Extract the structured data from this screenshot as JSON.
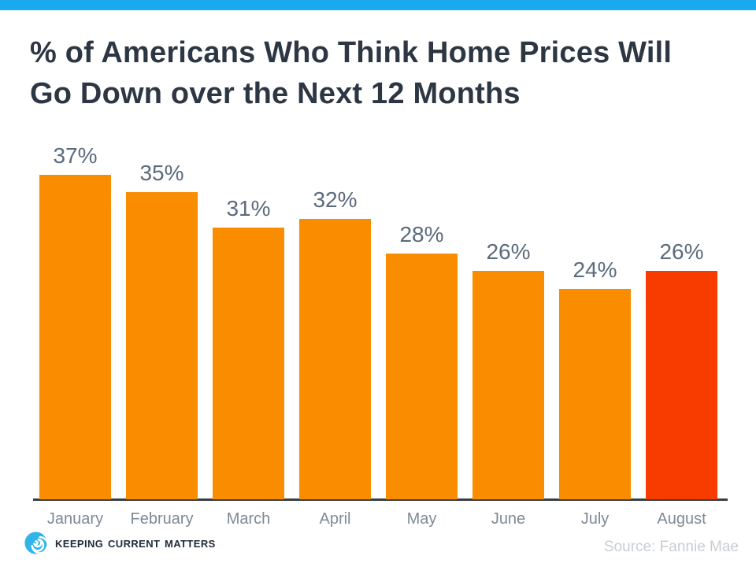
{
  "page": {
    "title": "% of Americans Who Think Home Prices Will Go Down over the Next 12 Months"
  },
  "chart_data": {
    "type": "bar",
    "title": "% of Americans Who Think Home Prices Will Go Down over the Next 12 Months",
    "categories": [
      "January",
      "February",
      "March",
      "April",
      "May",
      "June",
      "July",
      "August"
    ],
    "values": [
      37,
      35,
      31,
      32,
      28,
      26,
      24,
      26
    ],
    "value_labels": [
      "37%",
      "35%",
      "31%",
      "32%",
      "28%",
      "26%",
      "24%",
      "26%"
    ],
    "xlabel": "",
    "ylabel": "",
    "ylim": [
      0,
      40
    ],
    "grid": false,
    "legend": false,
    "bar_color": "#FA8C00",
    "highlight_index": 7,
    "highlight_color": "#F83C00",
    "annotation": "Final month (August) highlighted in red"
  },
  "footer": {
    "logo_text": "Keeping Current Matters",
    "logo_icon": "kcm-swirl-icon",
    "source": "Source: Fannie Mae"
  },
  "colors": {
    "top_bar": "#18A9EE",
    "title_text": "#2D3743",
    "value_label": "#5A6B7C",
    "month_label": "#7E8A94",
    "axis_line": "#3A3F44",
    "source_text": "#C7CDD2",
    "logo_text": "#1C2B39",
    "logo_blue": "#2FB5EA"
  }
}
